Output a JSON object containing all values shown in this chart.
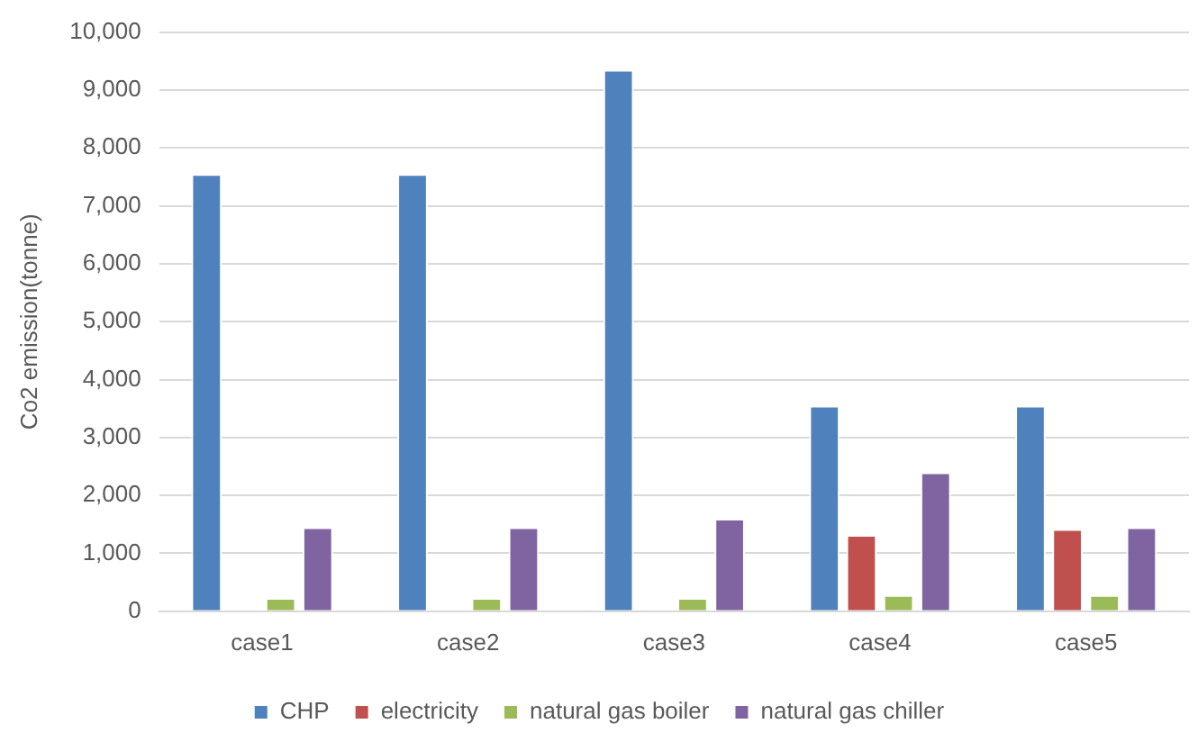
{
  "chart_data": {
    "type": "bar",
    "ylabel": "Co2 emission(tonne)",
    "categories": [
      "case1",
      "case2",
      "case3",
      "case4",
      "case5"
    ],
    "series": [
      {
        "name": "CHP",
        "color": "#4f81bd",
        "values": [
          7550,
          7550,
          9350,
          3550,
          3550
        ]
      },
      {
        "name": "electricity",
        "color": "#c0504d",
        "values": [
          0,
          0,
          0,
          1320,
          1420
        ]
      },
      {
        "name": "natural gas boiler",
        "color": "#9bbb59",
        "values": [
          230,
          230,
          230,
          280,
          280
        ]
      },
      {
        "name": "natural gas chiller",
        "color": "#8064a2",
        "values": [
          1450,
          1450,
          1600,
          2400,
          1450
        ]
      }
    ],
    "ylim": [
      0,
      10000
    ],
    "yticks": [
      {
        "value": 0,
        "label": "0"
      },
      {
        "value": 1000,
        "label": "1,000"
      },
      {
        "value": 2000,
        "label": "2,000"
      },
      {
        "value": 3000,
        "label": "3,000"
      },
      {
        "value": 4000,
        "label": "4,000"
      },
      {
        "value": 5000,
        "label": "5,000"
      },
      {
        "value": 6000,
        "label": "6,000"
      },
      {
        "value": 7000,
        "label": "7,000"
      },
      {
        "value": 8000,
        "label": "8,000"
      },
      {
        "value": 9000,
        "label": "9,000"
      },
      {
        "value": 10000,
        "label": "10,000"
      }
    ],
    "grid": "y",
    "legend": "bottom"
  }
}
